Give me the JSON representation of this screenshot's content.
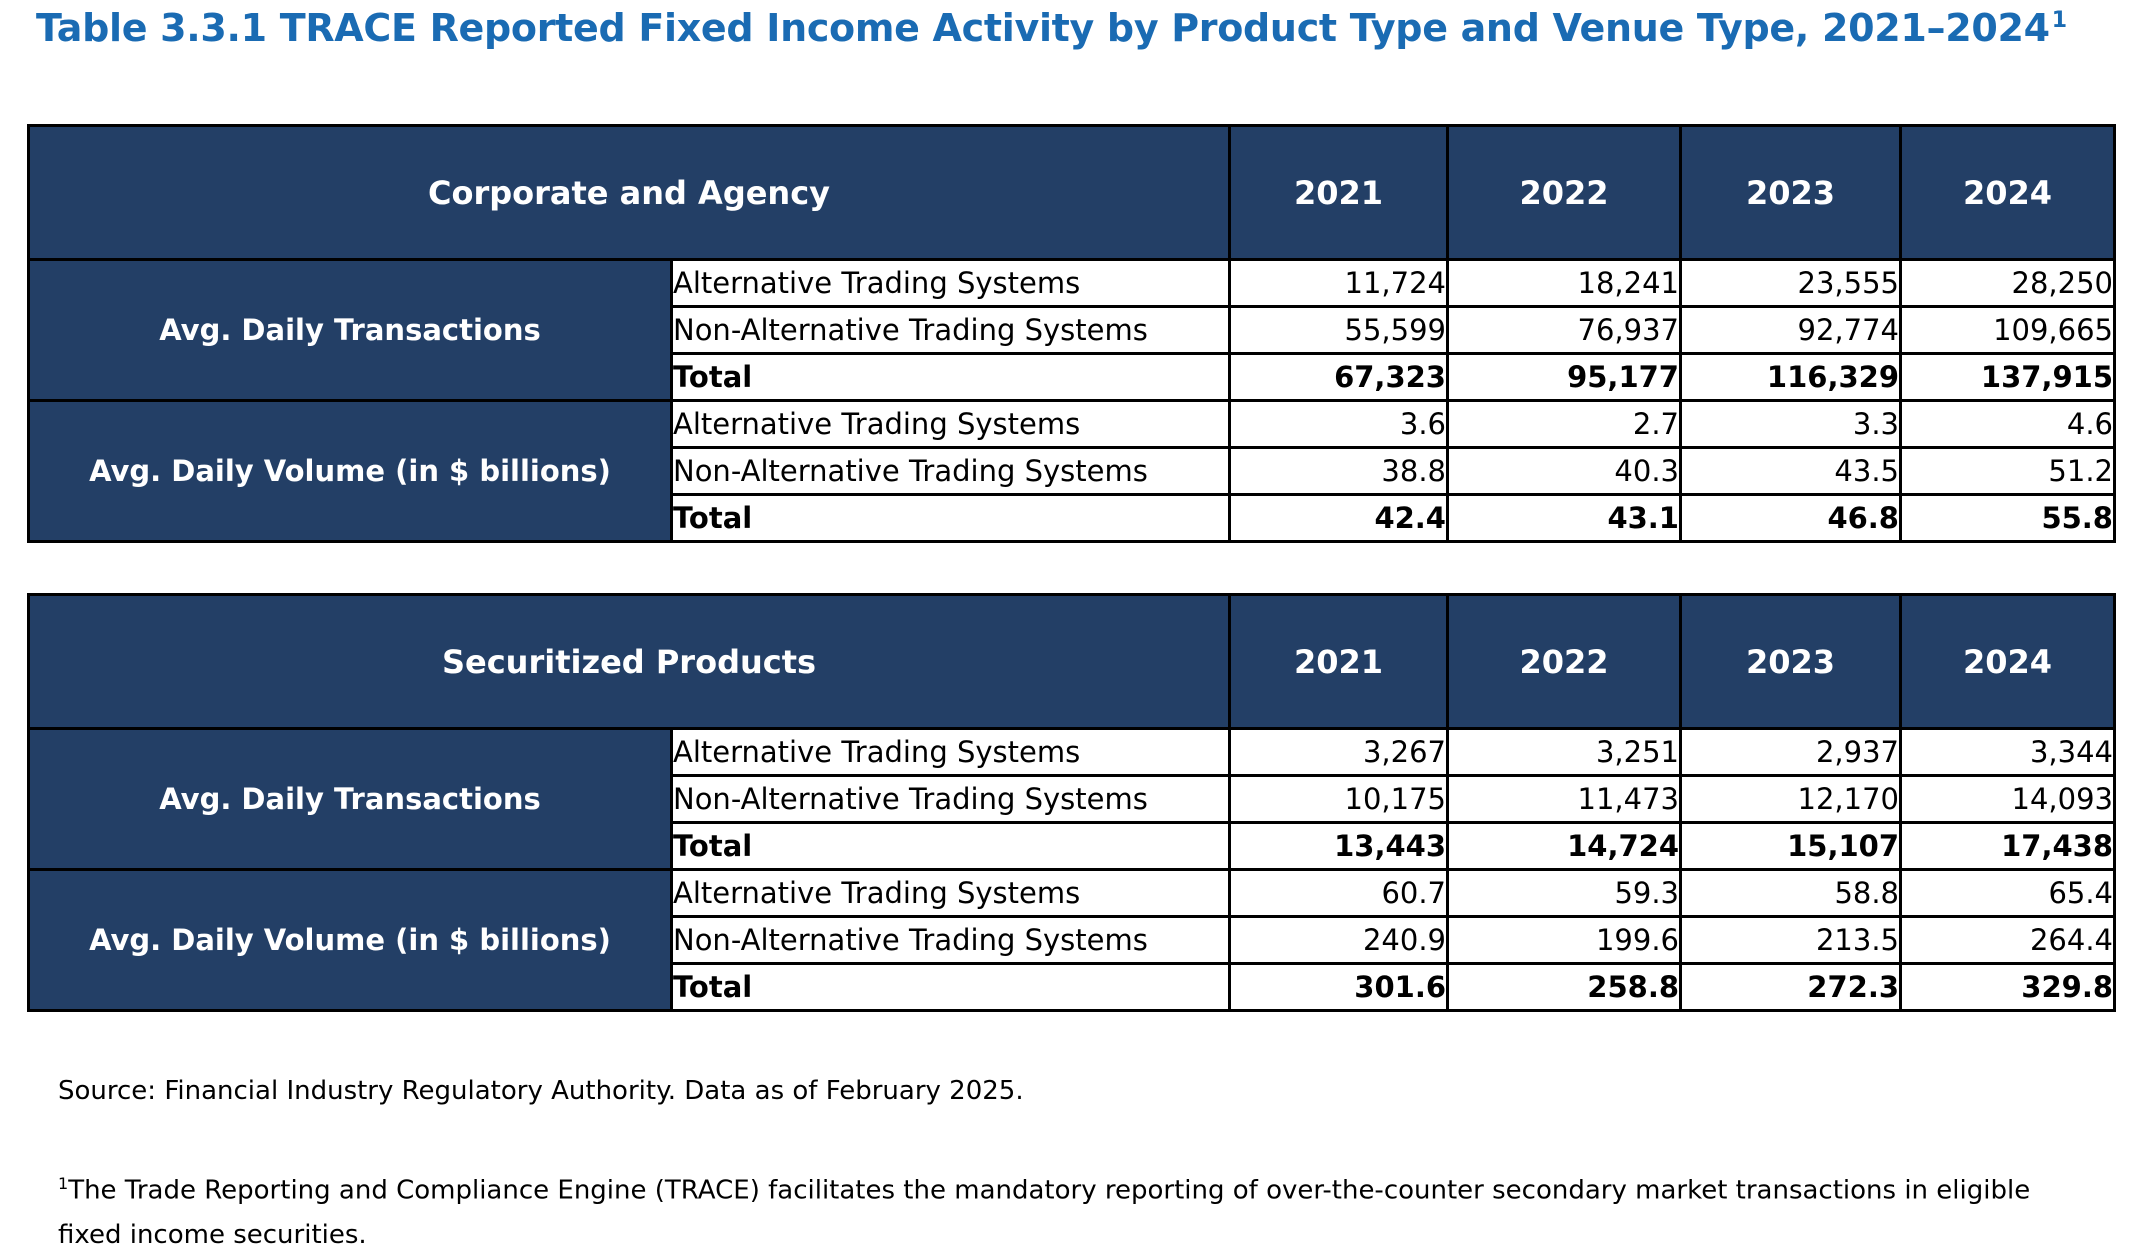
{
  "title": {
    "text": "Table 3.3.1 TRACE Reported Fixed Income Activity by Product Type and Venue Type, 2021–2024",
    "footnote_marker": "1"
  },
  "tables": [
    {
      "heading": "Corporate and Agency",
      "years": [
        "2021",
        "2022",
        "2023",
        "2024"
      ],
      "groups": [
        {
          "label": "Avg. Daily Transactions",
          "rows": [
            {
              "label": "Alternative Trading Systems",
              "values": [
                "11,724",
                "18,241",
                "23,555",
                "28,250"
              ]
            },
            {
              "label": "Non-Alternative Trading Systems",
              "values": [
                "55,599",
                "76,937",
                "92,774",
                "109,665"
              ]
            },
            {
              "label": "Total",
              "values": [
                "67,323",
                "95,177",
                "116,329",
                "137,915"
              ]
            }
          ]
        },
        {
          "label": "Avg. Daily Volume (in $ billions)",
          "rows": [
            {
              "label": "Alternative Trading Systems",
              "values": [
                "3.6",
                "2.7",
                "3.3",
                "4.6"
              ]
            },
            {
              "label": "Non-Alternative Trading Systems",
              "values": [
                "38.8",
                "40.3",
                "43.5",
                "51.2"
              ]
            },
            {
              "label": "Total",
              "values": [
                "42.4",
                "43.1",
                "46.8",
                "55.8"
              ]
            }
          ]
        }
      ]
    },
    {
      "heading": "Securitized Products",
      "years": [
        "2021",
        "2022",
        "2023",
        "2024"
      ],
      "groups": [
        {
          "label": "Avg. Daily Transactions",
          "rows": [
            {
              "label": "Alternative Trading Systems",
              "values": [
                "3,267",
                "3,251",
                "2,937",
                "3,344"
              ]
            },
            {
              "label": "Non-Alternative Trading Systems",
              "values": [
                "10,175",
                "11,473",
                "12,170",
                "14,093"
              ]
            },
            {
              "label": "Total",
              "values": [
                "13,443",
                "14,724",
                "15,107",
                "17,438"
              ]
            }
          ]
        },
        {
          "label": "Avg. Daily Volume (in $ billions)",
          "rows": [
            {
              "label": "Alternative Trading Systems",
              "values": [
                "60.7",
                "59.3",
                "58.8",
                "65.4"
              ]
            },
            {
              "label": "Non-Alternative Trading Systems",
              "values": [
                "240.9",
                "199.6",
                "213.5",
                "264.4"
              ]
            },
            {
              "label": "Total",
              "values": [
                "301.6",
                "258.8",
                "272.3",
                "329.8"
              ]
            }
          ]
        }
      ]
    }
  ],
  "source": "Source: Financial Industry Regulatory Authority. Data as of February 2025.",
  "footnote": {
    "marker": "1",
    "text": "The Trade Reporting and Compliance Engine (TRACE) facilitates the mandatory reporting of over-the-counter secondary market transactions in eligible fixed income securities."
  },
  "colors": {
    "title": "#1a6bb3",
    "header_bg": "#233f66",
    "header_text": "#ffffff"
  }
}
